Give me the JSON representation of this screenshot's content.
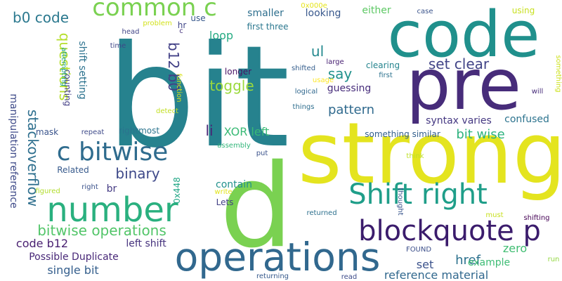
{
  "words": [
    {
      "text": "bit",
      "color": "#26828e"
    },
    {
      "text": "strong",
      "color": "#e4e41f"
    },
    {
      "text": "p",
      "color": "#7ad151"
    },
    {
      "text": "code",
      "color": "#20908c"
    },
    {
      "text": "pre",
      "color": "#472c7a"
    },
    {
      "text": "operations",
      "color": "#31688e"
    },
    {
      "text": "Shift right",
      "color": "#1f9e89"
    },
    {
      "text": "number",
      "color": "#2ab07f"
    },
    {
      "text": "blockquote p",
      "color": "#3b1c6c"
    },
    {
      "text": "c bitwise",
      "color": "#2f6c8e"
    },
    {
      "text": "common c",
      "color": "#7ad151"
    },
    {
      "text": "bitwise operations",
      "color": "#52c569"
    },
    {
      "text": "set clear",
      "color": "#414487"
    },
    {
      "text": "binary",
      "color": "#3e4989"
    },
    {
      "text": "questions",
      "color": "#b5de2b"
    },
    {
      "text": "stackoverflow",
      "color": "#2e6f8e"
    },
    {
      "text": "manipulation reference",
      "color": "#3e4a89"
    },
    {
      "text": "b0 code",
      "color": "#2a788e"
    },
    {
      "text": "shift setting",
      "color": "#2c728e"
    },
    {
      "text": "b12 b0",
      "color": "#424086"
    },
    {
      "text": "ul",
      "color": "#23888e"
    },
    {
      "text": "say",
      "color": "#21918c"
    },
    {
      "text": "toggle",
      "color": "#9bd93c"
    },
    {
      "text": "pattern",
      "color": "#306a8e"
    },
    {
      "text": "loop",
      "color": "#25ab82"
    },
    {
      "text": "li",
      "color": "#482475"
    },
    {
      "text": "XOR left",
      "color": "#3aba76"
    },
    {
      "text": "bit wise",
      "color": "#2db27d"
    },
    {
      "text": "href",
      "color": "#2c718e"
    },
    {
      "text": "set",
      "color": "#3b528b"
    },
    {
      "text": "example",
      "color": "#3dbc74"
    },
    {
      "text": "zero",
      "color": "#40bd72"
    },
    {
      "text": "reference material",
      "color": "#31688e"
    },
    {
      "text": "code b12",
      "color": "#481f70"
    },
    {
      "text": "left shift",
      "color": "#46337e"
    },
    {
      "text": "single bit",
      "color": "#355f8d"
    },
    {
      "text": "Possible Duplicate",
      "color": "#482878"
    },
    {
      "text": "confused",
      "color": "#2c738e"
    },
    {
      "text": "syntax varies",
      "color": "#453882"
    },
    {
      "text": "something similar",
      "color": "#34608d"
    },
    {
      "text": "contain",
      "color": "#21918c"
    },
    {
      "text": "smaller",
      "color": "#2e6f8e"
    },
    {
      "text": "first three",
      "color": "#2a778e"
    },
    {
      "text": "looking",
      "color": "#38588c"
    },
    {
      "text": "either",
      "color": "#5cc863"
    },
    {
      "text": "clearing",
      "color": "#25848e"
    },
    {
      "text": "guessing",
      "color": "#472d7b"
    },
    {
      "text": "longer",
      "color": "#471164"
    },
    {
      "text": "counting",
      "color": "#433e85"
    },
    {
      "text": "rightmost",
      "color": "#2b748e"
    },
    {
      "text": "mask",
      "color": "#3a548c"
    },
    {
      "text": "repeat",
      "color": "#3e4a89"
    },
    {
      "text": "br",
      "color": "#443a83"
    },
    {
      "text": "Related",
      "color": "#375a8c"
    },
    {
      "text": "Lets",
      "color": "#423f85"
    },
    {
      "text": "0x448",
      "color": "#21a685"
    },
    {
      "text": "0x000e",
      "color": "#e5e419"
    },
    {
      "text": "case",
      "color": "#3a538b"
    },
    {
      "text": "using",
      "color": "#c8e020"
    },
    {
      "text": "use",
      "color": "#38588c"
    },
    {
      "text": "hr",
      "color": "#404688"
    },
    {
      "text": "c",
      "color": "#46337e"
    },
    {
      "text": "problem",
      "color": "#d2e21b"
    },
    {
      "text": "head",
      "color": "#414487"
    },
    {
      "text": "time",
      "color": "#3f4788"
    },
    {
      "text": "attempting",
      "color": "#1fa188"
    },
    {
      "text": "function",
      "color": "#d8e219"
    },
    {
      "text": "detect",
      "color": "#c2df23"
    },
    {
      "text": "shifted",
      "color": "#355e8d"
    },
    {
      "text": "large",
      "color": "#482173"
    },
    {
      "text": "usage",
      "color": "#fde725"
    },
    {
      "text": "logical",
      "color": "#31688e"
    },
    {
      "text": "things",
      "color": "#2e6e8e"
    },
    {
      "text": "first",
      "color": "#2c728e"
    },
    {
      "text": "will",
      "color": "#472c7a"
    },
    {
      "text": "something",
      "color": "#cde11d"
    },
    {
      "text": "assembly",
      "color": "#32b67a"
    },
    {
      "text": "put",
      "color": "#3b528b"
    },
    {
      "text": "think",
      "color": "#bddf26"
    },
    {
      "text": "thought",
      "color": "#39568c"
    },
    {
      "text": "returned",
      "color": "#2d708e"
    },
    {
      "text": "write",
      "color": "#e1e318"
    },
    {
      "text": "must",
      "color": "#c8e020"
    },
    {
      "text": "shifting",
      "color": "#440154"
    },
    {
      "text": "FOUND",
      "color": "#3c4f8a"
    },
    {
      "text": "run",
      "color": "#93d741"
    },
    {
      "text": "returning",
      "color": "#375a8c"
    },
    {
      "text": "read",
      "color": "#3e4c8a"
    },
    {
      "text": "figured",
      "color": "#b2dd2d"
    },
    {
      "text": "right",
      "color": "#3b528b"
    }
  ]
}
